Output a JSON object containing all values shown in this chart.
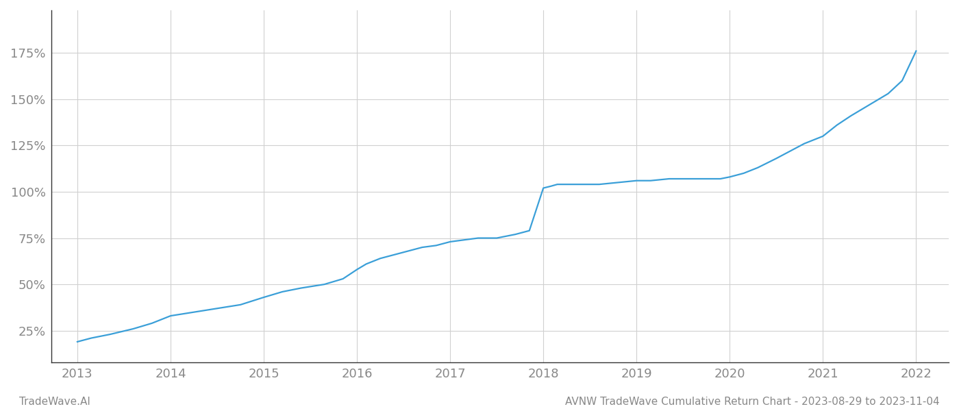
{
  "x_values": [
    2013.0,
    2013.15,
    2013.35,
    2013.6,
    2013.8,
    2014.0,
    2014.25,
    2014.5,
    2014.75,
    2015.0,
    2015.2,
    2015.4,
    2015.65,
    2015.85,
    2016.0,
    2016.1,
    2016.25,
    2016.4,
    2016.55,
    2016.7,
    2016.85,
    2017.0,
    2017.15,
    2017.3,
    2017.5,
    2017.7,
    2017.85,
    2018.0,
    2018.08,
    2018.15,
    2018.25,
    2018.4,
    2018.6,
    2018.8,
    2019.0,
    2019.15,
    2019.35,
    2019.55,
    2019.75,
    2019.9,
    2020.0,
    2020.15,
    2020.3,
    2020.5,
    2020.65,
    2020.8,
    2021.0,
    2021.15,
    2021.3,
    2021.5,
    2021.7,
    2021.85,
    2022.0
  ],
  "y_values": [
    19,
    21,
    23,
    26,
    29,
    33,
    35,
    37,
    39,
    43,
    46,
    48,
    50,
    53,
    58,
    61,
    64,
    66,
    68,
    70,
    71,
    73,
    74,
    75,
    75,
    77,
    79,
    102,
    103,
    104,
    104,
    104,
    104,
    105,
    106,
    106,
    107,
    107,
    107,
    107,
    108,
    110,
    113,
    118,
    122,
    126,
    130,
    136,
    141,
    147,
    153,
    160,
    176
  ],
  "line_color": "#3a9fd8",
  "line_width": 1.6,
  "x_ticks": [
    2013,
    2014,
    2015,
    2016,
    2017,
    2018,
    2019,
    2020,
    2021,
    2022
  ],
  "y_ticks": [
    25,
    50,
    75,
    100,
    125,
    150,
    175
  ],
  "y_tick_labels": [
    "25%",
    "50%",
    "75%",
    "100%",
    "125%",
    "150%",
    "175%"
  ],
  "xlim": [
    2012.72,
    2022.35
  ],
  "ylim": [
    8,
    198
  ],
  "grid_color": "#d0d0d0",
  "background_color": "#ffffff",
  "footer_left": "TradeWave.AI",
  "footer_right": "AVNW TradeWave Cumulative Return Chart - 2023-08-29 to 2023-11-04",
  "footer_color": "#888888",
  "footer_fontsize": 11,
  "tick_color": "#888888",
  "tick_fontsize": 13,
  "left_spine_color": "#333333",
  "bottom_spine_color": "#333333"
}
